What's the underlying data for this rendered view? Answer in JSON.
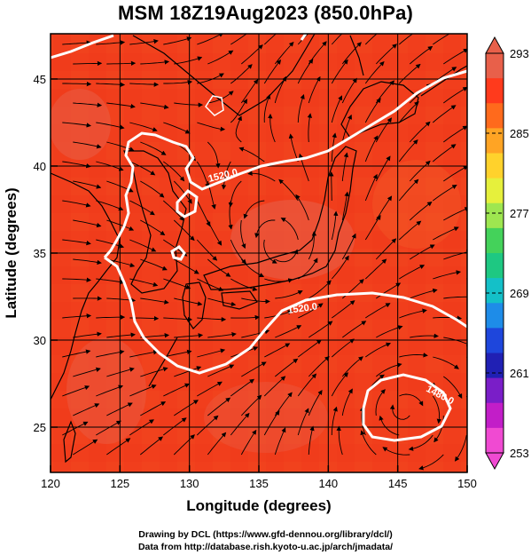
{
  "title": "MSM 18Z19Aug2023 (850.0hPa)",
  "map": {
    "x_axis": {
      "label": "Longitude (degrees)",
      "range": [
        120,
        150
      ],
      "ticks": [
        "120",
        "125",
        "130",
        "135",
        "140",
        "145",
        "150"
      ]
    },
    "y_axis": {
      "label": "Latitude  (degrees)",
      "range": [
        22.4,
        47.6
      ],
      "ticks": [
        "25",
        "30",
        "35",
        "40",
        "45"
      ]
    },
    "fill_color": "#f2401c",
    "contour_color": "#ffffff",
    "contour_labels": [
      "1520.0",
      "1520.0",
      "1480.0"
    ]
  },
  "colorbar": {
    "range": [
      253,
      293
    ],
    "labels": [
      "293",
      "285",
      "277",
      "269",
      "261",
      "253"
    ],
    "colors": [
      "#e8604a",
      "#ff3a1c",
      "#ff6a1c",
      "#ffa424",
      "#ffd22c",
      "#e6f03c",
      "#9ee650",
      "#44d25a",
      "#1ec882",
      "#14c0c8",
      "#1e8ce8",
      "#1e46dc",
      "#2020b4",
      "#7a1ec8",
      "#c21ec8",
      "#f04ad2"
    ]
  },
  "footer": {
    "line1": "Drawing by DCL (https://www.gfd-dennou.org/library/dcl/)",
    "line2": "Data from http://database.rish.kyoto-u.ac.jp/arch/jmadata/"
  }
}
